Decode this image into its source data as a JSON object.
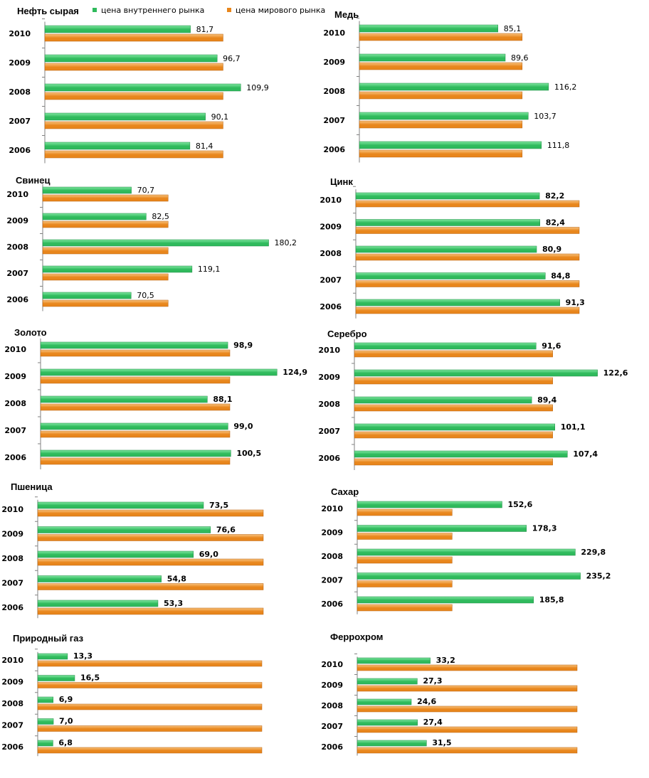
{
  "legend": {
    "domestic": "цена внутреннего рынка",
    "world": "цена мирового рынка"
  },
  "colors": {
    "domestic": "#2fba5c",
    "domestic_light": "#7fe6a0",
    "world": "#e8861c",
    "world_light": "#f8c27e",
    "axis": "#808080"
  },
  "chart_data": [
    {
      "type": "bar",
      "title": "Нефть сырая",
      "categories": [
        "2010",
        "2009",
        "2008",
        "2007",
        "2006"
      ],
      "series": [
        {
          "name": "цена внутреннего рынка",
          "values": [
            81.7,
            96.7,
            109.9,
            90.1,
            81.4
          ],
          "labels": [
            "81,7",
            "96,7",
            "109,9",
            "90,1",
            "81,4"
          ]
        },
        {
          "name": "цена мирового рынка",
          "values": [
            100,
            100,
            100,
            100,
            100
          ]
        }
      ],
      "xlim": [
        0,
        113
      ],
      "labels_bold": false
    },
    {
      "type": "bar",
      "title": "Медь",
      "categories": [
        "2010",
        "2009",
        "2008",
        "2007",
        "2006"
      ],
      "series": [
        {
          "name": "цена внутреннего рынка",
          "values": [
            85.1,
            89.6,
            116.2,
            103.7,
            111.8
          ],
          "labels": [
            "85,1",
            "89,6",
            "116,2",
            "103,7",
            "111,8"
          ]
        },
        {
          "name": "цена мирового рынка",
          "values": [
            100,
            100,
            100,
            100,
            100
          ]
        }
      ],
      "xlim": [
        0,
        118
      ],
      "labels_bold": false
    },
    {
      "type": "bar",
      "title": "Свинец",
      "categories": [
        "2010",
        "2009",
        "2008",
        "2007",
        "2006"
      ],
      "series": [
        {
          "name": "цена внутреннего рынка",
          "values": [
            70.7,
            82.5,
            180.2,
            119.1,
            70.5
          ],
          "labels": [
            "70,7",
            "82,5",
            "180,2",
            "119,1",
            "70,5"
          ]
        },
        {
          "name": "цена мирового рынка",
          "values": [
            100,
            100,
            100,
            100,
            100
          ]
        }
      ],
      "xlim": [
        0,
        185
      ],
      "labels_bold": false
    },
    {
      "type": "bar",
      "title": "Цинк",
      "categories": [
        "2010",
        "2009",
        "2008",
        "2007",
        "2006"
      ],
      "series": [
        {
          "name": "цена внутреннего рынка",
          "values": [
            82.2,
            82.4,
            80.9,
            84.8,
            91.3
          ],
          "labels": [
            "82,2",
            "82,4",
            "80,9",
            "84,8",
            "91,3"
          ]
        },
        {
          "name": "цена мирового рынка",
          "values": [
            100,
            100,
            100,
            100,
            100
          ]
        }
      ],
      "xlim": [
        0,
        100
      ],
      "labels_bold": true
    },
    {
      "type": "bar",
      "title": "Золото",
      "categories": [
        "2010",
        "2009",
        "2008",
        "2007",
        "2006"
      ],
      "series": [
        {
          "name": "цена внутреннего рынка",
          "values": [
            98.9,
            124.9,
            88.1,
            99.0,
            100.5
          ],
          "labels": [
            "98,9",
            "124,9",
            "88,1",
            "99,0",
            "100,5"
          ]
        },
        {
          "name": "цена мирового рынка",
          "values": [
            100,
            100,
            100,
            100,
            100
          ]
        }
      ],
      "xlim": [
        0,
        150
      ],
      "labels_bold": true
    },
    {
      "type": "bar",
      "title": "Серебро",
      "categories": [
        "2010",
        "2009",
        "2008",
        "2007",
        "2006"
      ],
      "series": [
        {
          "name": "цена внутреннего рынка",
          "values": [
            91.6,
            122.6,
            89.4,
            101.1,
            107.4
          ],
          "labels": [
            "91,6",
            "122,6",
            "89,4",
            "101,1",
            "107,4"
          ]
        },
        {
          "name": "цена мирового рынка",
          "values": [
            100,
            100,
            100,
            100,
            100
          ]
        }
      ],
      "xlim": [
        0,
        150
      ],
      "labels_bold": true
    },
    {
      "type": "bar",
      "title": "Пшеница",
      "categories": [
        "2010",
        "2009",
        "2008",
        "2007",
        "2006"
      ],
      "series": [
        {
          "name": "цена внутреннего рынка",
          "values": [
            73.5,
            76.6,
            69.0,
            54.8,
            53.3
          ],
          "labels": [
            "73,5",
            "76,6",
            "69,0",
            "54,8",
            "53,3"
          ]
        },
        {
          "name": "цена мирового рынка",
          "values": [
            100,
            100,
            100,
            100,
            100
          ]
        }
      ],
      "xlim": [
        0,
        100
      ],
      "labels_bold": true
    },
    {
      "type": "bar",
      "title": "Сахар",
      "categories": [
        "2010",
        "2009",
        "2008",
        "2007",
        "2006"
      ],
      "series": [
        {
          "name": "цена внутреннего рынка",
          "values": [
            152.6,
            178.3,
            229.8,
            235.2,
            185.8
          ],
          "labels": [
            "152,6",
            "178,3",
            "229,8",
            "235,2",
            "185,8"
          ]
        },
        {
          "name": "цена мирового рынка",
          "values": [
            100,
            100,
            100,
            100,
            100
          ]
        }
      ],
      "xlim": [
        0,
        240
      ],
      "labels_bold": true
    },
    {
      "type": "bar",
      "title": "Природный газ",
      "categories": [
        "2010",
        "2009",
        "2008",
        "2007",
        "2006"
      ],
      "series": [
        {
          "name": "цена внутреннего рынка",
          "values": [
            13.3,
            16.5,
            6.9,
            7.0,
            6.8
          ],
          "labels": [
            "13,3",
            "16,5",
            "6,9",
            "7,0",
            "6,8"
          ]
        },
        {
          "name": "цена мирового рынка",
          "values": [
            100,
            100,
            100,
            100,
            100
          ]
        }
      ],
      "xlim": [
        0,
        100
      ],
      "labels_bold": true
    },
    {
      "type": "bar",
      "title": "Феррохром",
      "categories": [
        "2010",
        "2009",
        "2008",
        "2007",
        "2006"
      ],
      "series": [
        {
          "name": "цена внутреннего рынка",
          "values": [
            33.2,
            27.3,
            24.6,
            27.4,
            31.5
          ],
          "labels": [
            "33,2",
            "27,3",
            "24,6",
            "27,4",
            "31,5"
          ]
        },
        {
          "name": "цена мирового рынка",
          "values": [
            100,
            100,
            100,
            100,
            100
          ]
        }
      ],
      "xlim": [
        0,
        100
      ],
      "labels_bold": true
    }
  ]
}
